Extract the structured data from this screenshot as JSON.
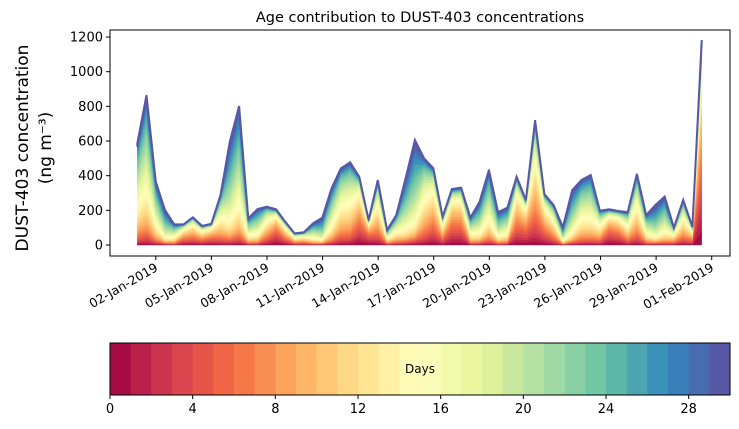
{
  "chart_data": {
    "type": "area",
    "stacked": true,
    "title": "Age contribution to DUST-403 concentrations",
    "ylabel_line1": "DUST-403 concentration",
    "ylabel_line2": "(ng m⁻³)",
    "xlabel": "",
    "ylim": [
      -60,
      1230
    ],
    "yticks": [
      0,
      200,
      400,
      600,
      800,
      1000,
      1200
    ],
    "xtick_labels": [
      "02-Jan-2019",
      "05-Jan-2019",
      "08-Jan-2019",
      "11-Jan-2019",
      "14-Jan-2019",
      "17-Jan-2019",
      "20-Jan-2019",
      "23-Jan-2019",
      "26-Jan-2019",
      "29-Jan-2019",
      "01-Feb-2019"
    ],
    "xtick_days": [
      2,
      5,
      8,
      11,
      14,
      17,
      20,
      23,
      26,
      29,
      32
    ],
    "x_unit": "day of January 2019",
    "x_start_day": 1.0,
    "x_end_day": 31.46,
    "total_values": [
      587,
      865,
      365,
      202,
      119,
      119,
      160,
      110,
      122,
      288,
      596,
      802,
      154,
      208,
      221,
      206,
      134,
      67,
      73,
      125,
      158,
      327,
      442,
      477,
      394,
      144,
      375,
      87,
      173,
      385,
      606,
      500,
      442,
      163,
      323,
      331,
      158,
      250,
      433,
      189,
      215,
      394,
      260,
      721,
      294,
      231,
      102,
      317,
      375,
      404,
      198,
      206,
      196,
      189,
      410,
      173,
      231,
      279,
      100,
      260,
      106,
      1183
    ],
    "legend": {
      "type": "colorbar",
      "label": "Days",
      "placement": "bottom",
      "range": [
        0,
        30
      ],
      "ticks": [
        0,
        4,
        8,
        12,
        16,
        20,
        24,
        28
      ],
      "n_bins": 30
    },
    "colormap": "Spectral",
    "colormap_anchors": [
      "#9e0142",
      "#d53e4f",
      "#f46d43",
      "#fdae61",
      "#fee08b",
      "#ffffbf",
      "#e6f598",
      "#abdda4",
      "#66c2a5",
      "#3288bd",
      "#5e4fa2"
    ]
  }
}
